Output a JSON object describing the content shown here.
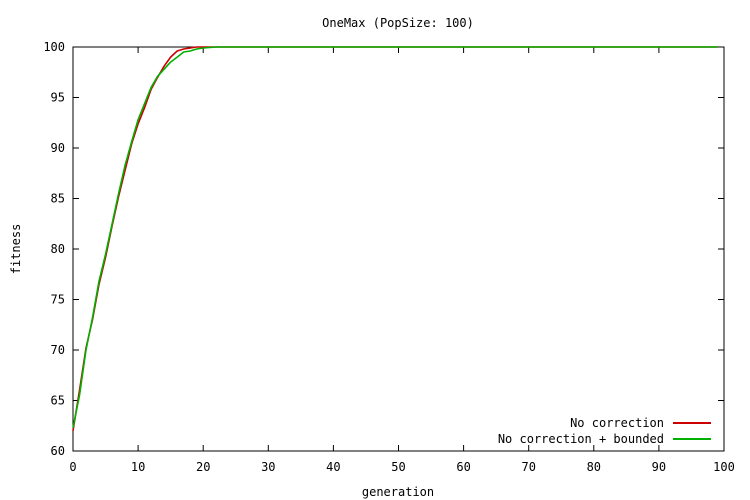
{
  "chart_data": {
    "type": "line",
    "title": "OneMax (PopSize: 100)",
    "xlabel": "generation",
    "ylabel": "fitness",
    "xlim": [
      0,
      100
    ],
    "ylim": [
      60,
      100
    ],
    "xticks": [
      0,
      10,
      20,
      30,
      40,
      50,
      60,
      70,
      80,
      90,
      100
    ],
    "yticks": [
      60,
      65,
      70,
      75,
      80,
      85,
      90,
      95,
      100
    ],
    "grid": false,
    "legend_position": "bottom-right",
    "series": [
      {
        "name": "No correction",
        "color": "#cc0000",
        "x": [
          0,
          1,
          2,
          3,
          4,
          5,
          6,
          7,
          8,
          9,
          10,
          11,
          12,
          13,
          14,
          15,
          16,
          17,
          18,
          19,
          20,
          22,
          25,
          30,
          40,
          50,
          60,
          70,
          80,
          90,
          99
        ],
        "y": [
          62.0,
          66.0,
          70.2,
          73.0,
          76.5,
          79.2,
          82.3,
          85.2,
          87.8,
          90.4,
          92.4,
          94.0,
          95.8,
          97.0,
          98.1,
          99.0,
          99.6,
          99.8,
          99.9,
          100.0,
          100.0,
          100.0,
          100.0,
          100.0,
          100.0,
          100.0,
          100.0,
          100.0,
          100.0,
          100.0,
          100.0
        ]
      },
      {
        "name": "No correction + bounded",
        "color": "#00b000",
        "x": [
          0,
          1,
          2,
          3,
          4,
          5,
          6,
          7,
          8,
          9,
          10,
          11,
          12,
          13,
          14,
          15,
          16,
          17,
          18,
          19,
          20,
          22,
          25,
          30,
          40,
          50,
          60,
          70,
          80,
          90,
          99
        ],
        "y": [
          62.3,
          65.5,
          70.0,
          73.2,
          76.8,
          79.5,
          82.5,
          85.5,
          88.3,
          90.6,
          92.8,
          94.4,
          96.0,
          97.1,
          97.8,
          98.5,
          99.0,
          99.5,
          99.6,
          99.8,
          99.9,
          100.0,
          100.0,
          100.0,
          100.0,
          100.0,
          100.0,
          100.0,
          100.0,
          100.0,
          100.0
        ]
      }
    ]
  }
}
